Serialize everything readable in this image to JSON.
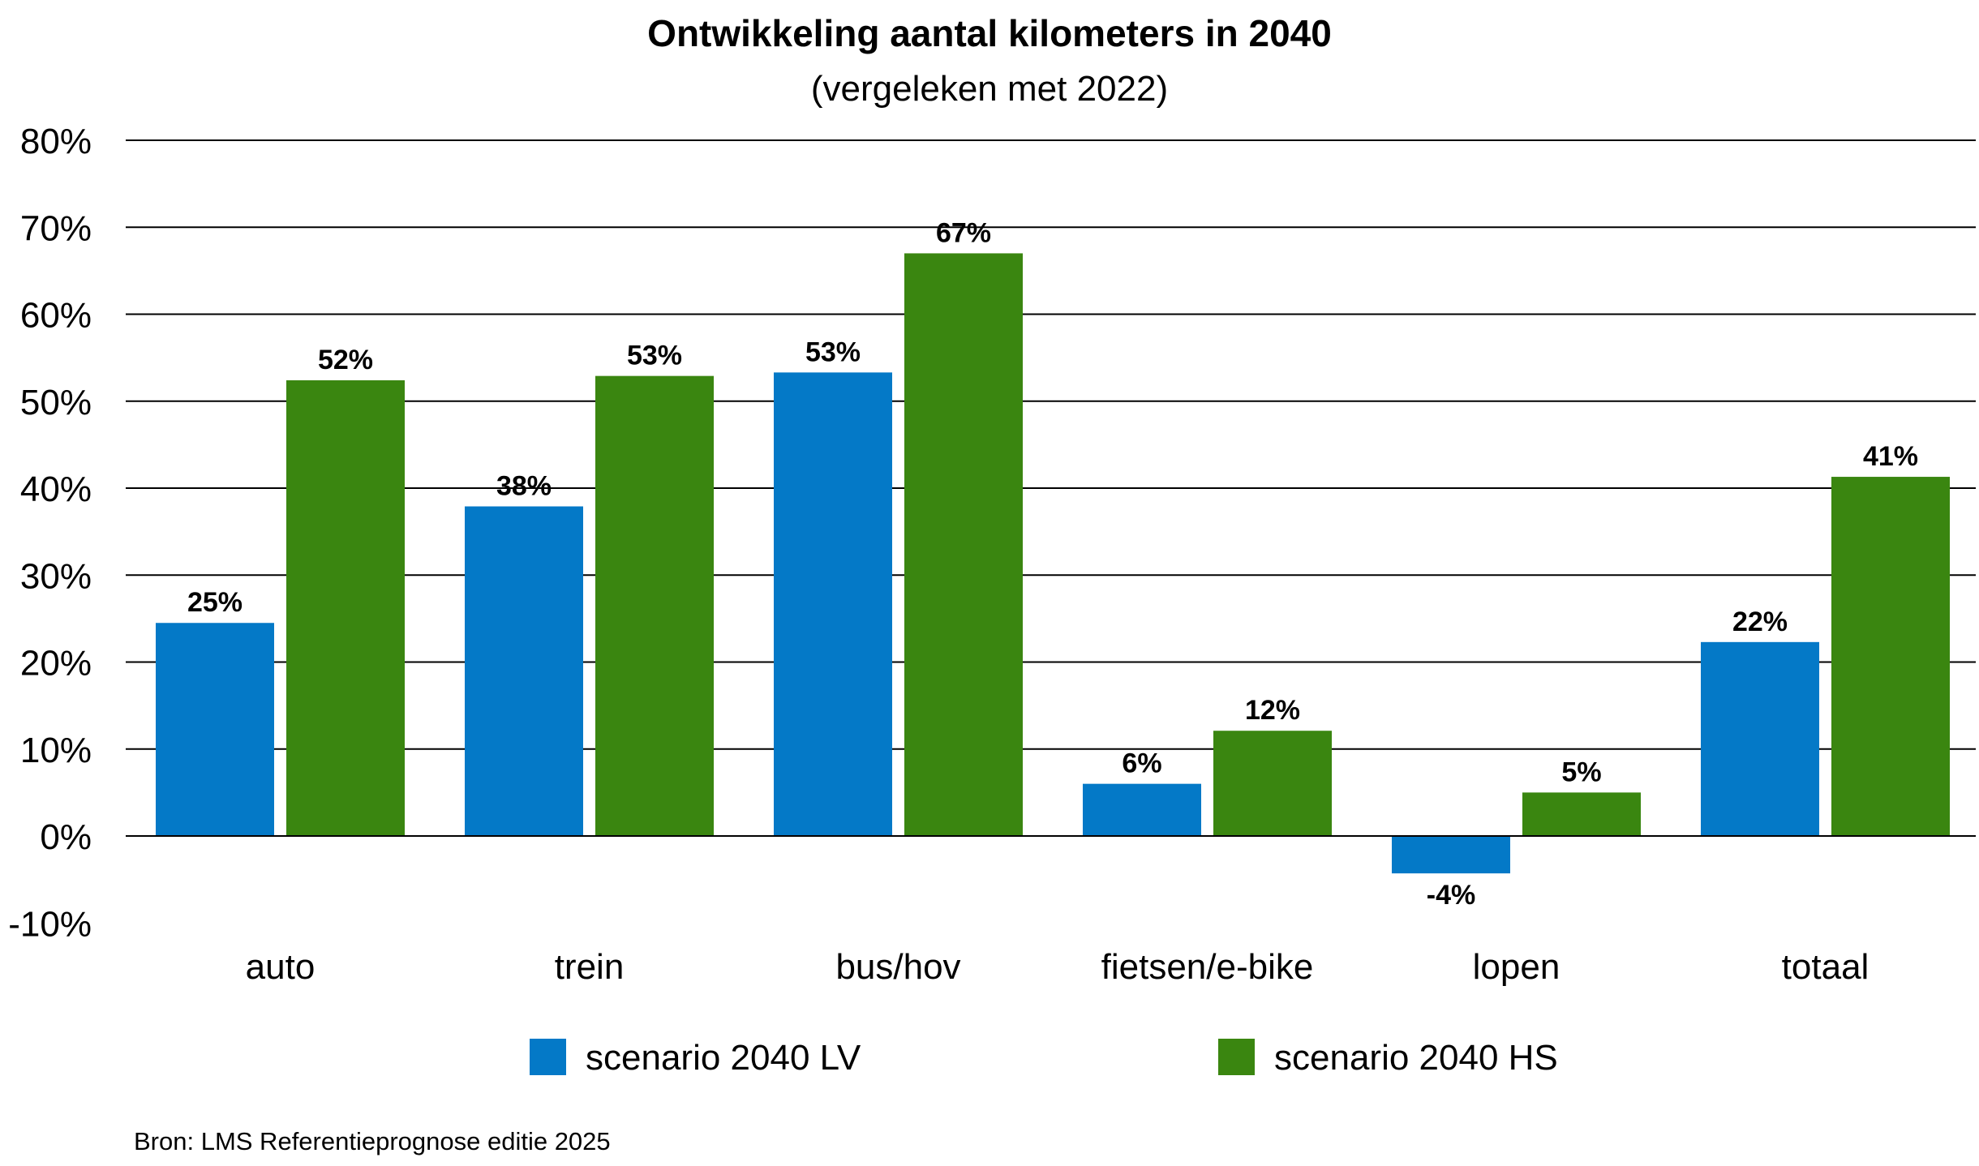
{
  "chart_data": {
    "type": "bar",
    "title": "Ontwikkeling aantal kilometers in 2040",
    "subtitle": "(vergeleken met 2022)",
    "xlabel": "",
    "ylabel": "",
    "ylim": [
      -10,
      80
    ],
    "yticks": [
      80,
      70,
      60,
      50,
      40,
      30,
      20,
      10,
      0,
      -10
    ],
    "ytick_labels": [
      "80%",
      "70%",
      "60%",
      "50%",
      "40%",
      "30%",
      "20%",
      "10%",
      "0%",
      "-10%"
    ],
    "grid": true,
    "categories": [
      "auto",
      "trein",
      "bus/hov",
      "fietsen/e-bike",
      "lopen",
      "totaal"
    ],
    "series": [
      {
        "name": "scenario 2040 LV",
        "color": "#0479C7",
        "values": [
          24.5,
          37.9,
          53.3,
          6.0,
          -4.3,
          22.3
        ],
        "labels": [
          "25%",
          "38%",
          "53%",
          "6%",
          "-4%",
          "22%"
        ]
      },
      {
        "name": "scenario 2040 HS",
        "color": "#3A8610",
        "values": [
          52.4,
          52.9,
          67.0,
          12.1,
          5.0,
          41.3
        ],
        "labels": [
          "52%",
          "53%",
          "67%",
          "12%",
          "5%",
          "41%"
        ]
      }
    ],
    "legend_position": "bottom",
    "source": "Bron: LMS Referentieprognose editie 2025"
  }
}
